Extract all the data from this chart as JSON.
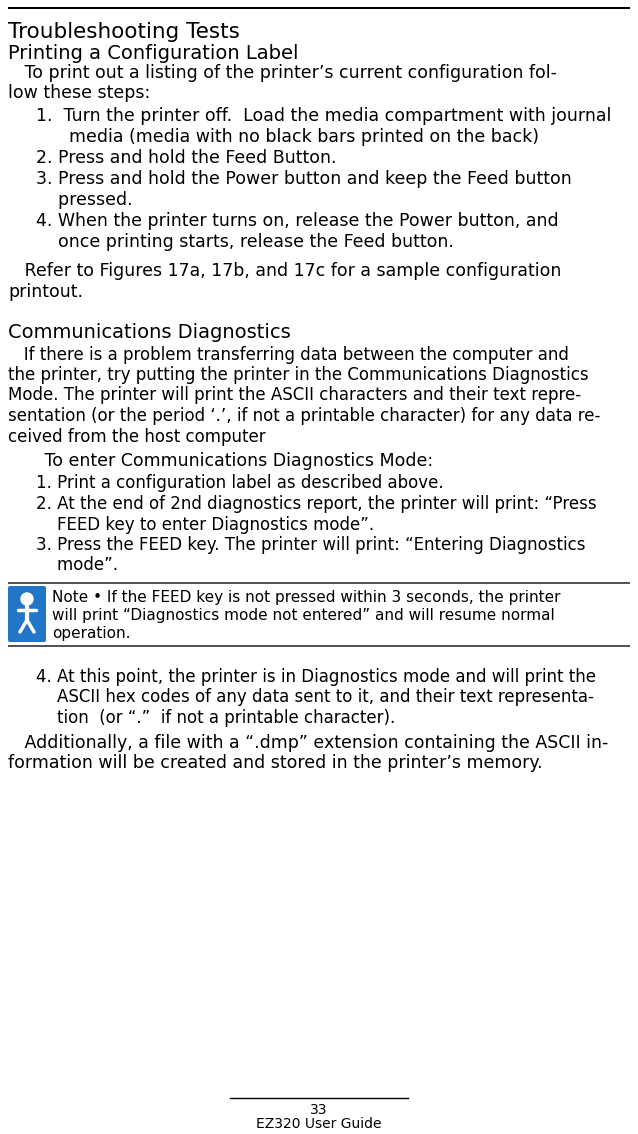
{
  "bg_color": "#ffffff",
  "text_color": "#000000",
  "top_line_color": "#000000",
  "title1": "Troubleshooting Tests",
  "title2": "Printing a Configuration Label",
  "intro_line1": "   To print out a listing of the printer’s current configuration fol-",
  "intro_line2": "low these steps:",
  "steps_section1": [
    [
      "1.  Turn the printer off.  Load the media compartment with journal",
      "      media (media with no black bars printed on the back)"
    ],
    [
      "2. Press and hold the Feed Button."
    ],
    [
      "3. Press and hold the Power button and keep the Feed button",
      "    pressed."
    ],
    [
      "4. When the printer turns on, release the Power button, and",
      "    once printing starts, release the Feed button."
    ]
  ],
  "refer_line1": "   Refer to Figures 17a, 17b, and 17c for a sample configuration",
  "refer_line2": "printout.",
  "section2_title": "Communications Diagnostics",
  "section2_lines": [
    "   If there is a problem transferring data between the computer and",
    "the printer, try putting the printer in the Communications Diagnostics",
    "Mode. The printer will print the ASCII characters and their text repre-",
    "sentation (or the period ‘.’, if not a printable character) for any data re-",
    "ceived from the host computer"
  ],
  "diag_mode_header": "   To enter Communications Diagnostics Mode:",
  "diag_steps": [
    [
      "1. Print a configuration label as described above."
    ],
    [
      "2. At the end of 2nd diagnostics report, the printer will print: “Press",
      "    FEED key to enter Diagnostics mode”."
    ],
    [
      "3. Press the FEED key. The printer will print: “Entering Diagnostics",
      "    mode”."
    ]
  ],
  "note_text_lines": [
    "Note • If the FEED key is not pressed within 3 seconds, the printer",
    "will print “Diagnostics mode not entered” and will resume normal",
    "operation."
  ],
  "step4_lines": [
    "4. At this point, the printer is in Diagnostics mode and will print the",
    "    ASCII hex codes of any data sent to it, and their text representa-",
    "    tion  (or “.”  if not a printable character)."
  ],
  "additionally_lines": [
    "   Additionally, a file with a “.dmp” extension containing the ASCII in-",
    "formation will be created and stored in the printer’s memory."
  ],
  "footer_page": "33",
  "footer_title": "EZ320 User Guide",
  "icon_color": "#2176c7",
  "line_color": "#555555"
}
